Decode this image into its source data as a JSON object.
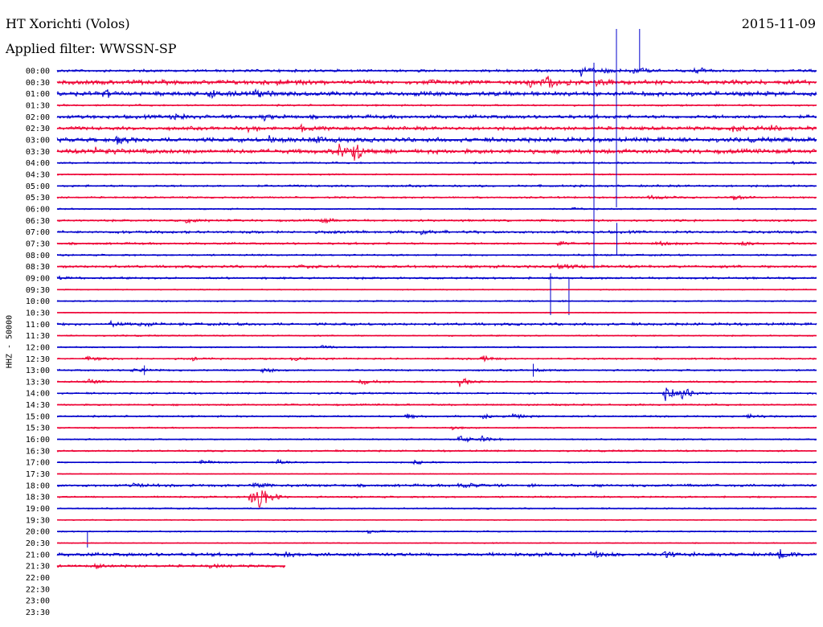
{
  "header": {
    "station": "HT Xorichti (Volos)",
    "date": "2015-11-09",
    "filter": "Applied filter: WWSSN-SP"
  },
  "chart_data": {
    "type": "line",
    "title": "HT Xorichti (Volos)",
    "subtitle": "Applied filter: WWSSN-SP",
    "date": "2015-11-09",
    "ylabel": "HHZ - 50000",
    "xlabel": "",
    "grid": false,
    "legend": "none",
    "colors": [
      "#0000cc",
      "#ee0033"
    ],
    "rows": [
      {
        "label": "00:00",
        "amp": 1.5,
        "events": [
          [
            0.69,
            7
          ],
          [
            0.72,
            4
          ],
          [
            0.84,
            4
          ],
          [
            0.76,
            5
          ]
        ],
        "spikes": [
          [
            0.767,
            52,
            0
          ]
        ]
      },
      {
        "label": "00:30",
        "amp": 2.5,
        "events": [
          [
            0.62,
            6
          ],
          [
            0.645,
            8
          ],
          [
            0.71,
            5
          ],
          [
            0.29,
            3
          ]
        ],
        "spikes": []
      },
      {
        "label": "01:00",
        "amp": 2.5,
        "events": [
          [
            0.06,
            5
          ],
          [
            0.2,
            5
          ],
          [
            0.26,
            4
          ]
        ],
        "spikes": []
      },
      {
        "label": "01:30",
        "amp": 1.0,
        "events": [],
        "spikes": []
      },
      {
        "label": "02:00",
        "amp": 2.0,
        "events": [
          [
            0.15,
            5
          ],
          [
            0.27,
            4
          ]
        ],
        "spikes": []
      },
      {
        "label": "02:30",
        "amp": 2.0,
        "events": [
          [
            0.25,
            4
          ],
          [
            0.32,
            4
          ],
          [
            0.94,
            5
          ],
          [
            0.89,
            4
          ]
        ],
        "spikes": []
      },
      {
        "label": "03:00",
        "amp": 2.5,
        "events": [
          [
            0.08,
            4
          ],
          [
            0.34,
            5
          ],
          [
            0.28,
            4
          ]
        ],
        "spikes": []
      },
      {
        "label": "03:30",
        "amp": 2.5,
        "events": [
          [
            0.37,
            10
          ],
          [
            0.39,
            14
          ],
          [
            0.05,
            5
          ]
        ],
        "spikes": []
      },
      {
        "label": "04:00",
        "amp": 1.0,
        "events": [
          [
            0.97,
            3
          ]
        ],
        "spikes": []
      },
      {
        "label": "04:30",
        "amp": 0.8,
        "events": [],
        "spikes": []
      },
      {
        "label": "05:00",
        "amp": 1.2,
        "events": [],
        "spikes": []
      },
      {
        "label": "05:30",
        "amp": 1.0,
        "events": [
          [
            0.78,
            4
          ],
          [
            0.89,
            4
          ]
        ],
        "spikes": []
      },
      {
        "label": "06:00",
        "amp": 0.8,
        "events": [
          [
            0.68,
            3
          ]
        ],
        "spikes": []
      },
      {
        "label": "06:30",
        "amp": 1.2,
        "events": [
          [
            0.17,
            3
          ],
          [
            0.35,
            3
          ]
        ],
        "spikes": []
      },
      {
        "label": "07:00",
        "amp": 1.5,
        "events": [
          [
            0.48,
            3
          ]
        ],
        "spikes": []
      },
      {
        "label": "07:30",
        "amp": 1.2,
        "events": [
          [
            0.66,
            3
          ],
          [
            0.79,
            3
          ],
          [
            0.9,
            3
          ]
        ],
        "spikes": []
      },
      {
        "label": "08:00",
        "amp": 1.0,
        "events": [],
        "spikes": [
          [
            0.737,
            40,
            0
          ]
        ]
      },
      {
        "label": "08:30",
        "amp": 1.5,
        "events": [
          [
            0.32,
            3
          ],
          [
            0.66,
            3
          ]
        ],
        "spikes": []
      },
      {
        "label": "09:00",
        "amp": 1.2,
        "events": [
          [
            0.0,
            3
          ]
        ],
        "spikes": [
          [
            0.674,
            0,
            46
          ]
        ]
      },
      {
        "label": "09:30",
        "amp": 0.6,
        "events": [],
        "spikes": []
      },
      {
        "label": "10:00",
        "amp": 0.8,
        "events": [],
        "spikes": []
      },
      {
        "label": "10:30",
        "amp": 0.6,
        "events": [],
        "spikes": []
      },
      {
        "label": "11:00",
        "amp": 1.5,
        "events": [
          [
            0.07,
            4
          ],
          [
            0.11,
            3
          ]
        ],
        "spikes": []
      },
      {
        "label": "11:30",
        "amp": 0.8,
        "events": [],
        "spikes": []
      },
      {
        "label": "12:00",
        "amp": 0.8,
        "events": [
          [
            0.35,
            3
          ]
        ],
        "spikes": []
      },
      {
        "label": "12:30",
        "amp": 1.0,
        "events": [
          [
            0.04,
            4
          ],
          [
            0.56,
            4
          ],
          [
            0.18,
            3
          ],
          [
            0.31,
            3
          ]
        ],
        "spikes": []
      },
      {
        "label": "13:00",
        "amp": 1.0,
        "events": [
          [
            0.27,
            4
          ],
          [
            0.1,
            3
          ],
          [
            0.63,
            3
          ]
        ],
        "spikes": [
          [
            0.115,
            6,
            6
          ],
          [
            0.627,
            8,
            8
          ]
        ]
      },
      {
        "label": "13:30",
        "amp": 1.0,
        "events": [
          [
            0.04,
            4
          ],
          [
            0.53,
            6
          ],
          [
            0.4,
            4
          ]
        ],
        "spikes": []
      },
      {
        "label": "14:00",
        "amp": 1.0,
        "events": [
          [
            0.8,
            12
          ],
          [
            0.82,
            8
          ]
        ],
        "spikes": []
      },
      {
        "label": "14:30",
        "amp": 1.0,
        "events": [],
        "spikes": []
      },
      {
        "label": "15:00",
        "amp": 1.0,
        "events": [
          [
            0.46,
            3
          ],
          [
            0.56,
            3
          ],
          [
            0.6,
            3
          ],
          [
            0.91,
            3
          ]
        ],
        "spikes": []
      },
      {
        "label": "15:30",
        "amp": 0.8,
        "events": [
          [
            0.52,
            3
          ]
        ],
        "spikes": []
      },
      {
        "label": "16:00",
        "amp": 0.8,
        "events": [
          [
            0.53,
            6
          ],
          [
            0.56,
            4
          ]
        ],
        "spikes": []
      },
      {
        "label": "16:30",
        "amp": 1.0,
        "events": [],
        "spikes": []
      },
      {
        "label": "17:00",
        "amp": 0.8,
        "events": [
          [
            0.19,
            4
          ],
          [
            0.29,
            4
          ],
          [
            0.47,
            3
          ]
        ],
        "spikes": []
      },
      {
        "label": "17:30",
        "amp": 0.5,
        "events": [],
        "spikes": []
      },
      {
        "label": "18:00",
        "amp": 1.5,
        "events": [
          [
            0.26,
            4
          ],
          [
            0.1,
            3
          ],
          [
            0.53,
            5
          ]
        ],
        "spikes": []
      },
      {
        "label": "18:30",
        "amp": 1.0,
        "events": [
          [
            0.255,
            18
          ],
          [
            0.265,
            12
          ]
        ],
        "spikes": []
      },
      {
        "label": "19:00",
        "amp": 0.8,
        "events": [],
        "spikes": []
      },
      {
        "label": "19:30",
        "amp": 0.6,
        "events": [],
        "spikes": []
      },
      {
        "label": "20:00",
        "amp": 0.8,
        "events": [
          [
            0.41,
            3
          ]
        ],
        "spikes": [
          [
            0.04,
            0,
            20
          ]
        ]
      },
      {
        "label": "20:30",
        "amp": 0.6,
        "events": [],
        "spikes": []
      },
      {
        "label": "21:00",
        "amp": 2.0,
        "events": [
          [
            0.7,
            5
          ],
          [
            0.8,
            5
          ],
          [
            0.95,
            6
          ],
          [
            0.3,
            3
          ]
        ],
        "spikes": []
      },
      {
        "label": "21:30",
        "amp": 1.5,
        "events": [
          [
            0.05,
            3
          ],
          [
            0.2,
            3
          ]
        ],
        "spikes": [],
        "end": 0.3
      },
      {
        "label": "22:00",
        "amp": 0,
        "events": [],
        "spikes": [],
        "end": 0
      },
      {
        "label": "22:30",
        "amp": 0,
        "events": [],
        "spikes": [],
        "end": 0
      },
      {
        "label": "23:00",
        "amp": 0,
        "events": [],
        "spikes": [],
        "end": 0
      },
      {
        "label": "23:30",
        "amp": 0,
        "events": [],
        "spikes": [],
        "end": 0
      }
    ]
  }
}
